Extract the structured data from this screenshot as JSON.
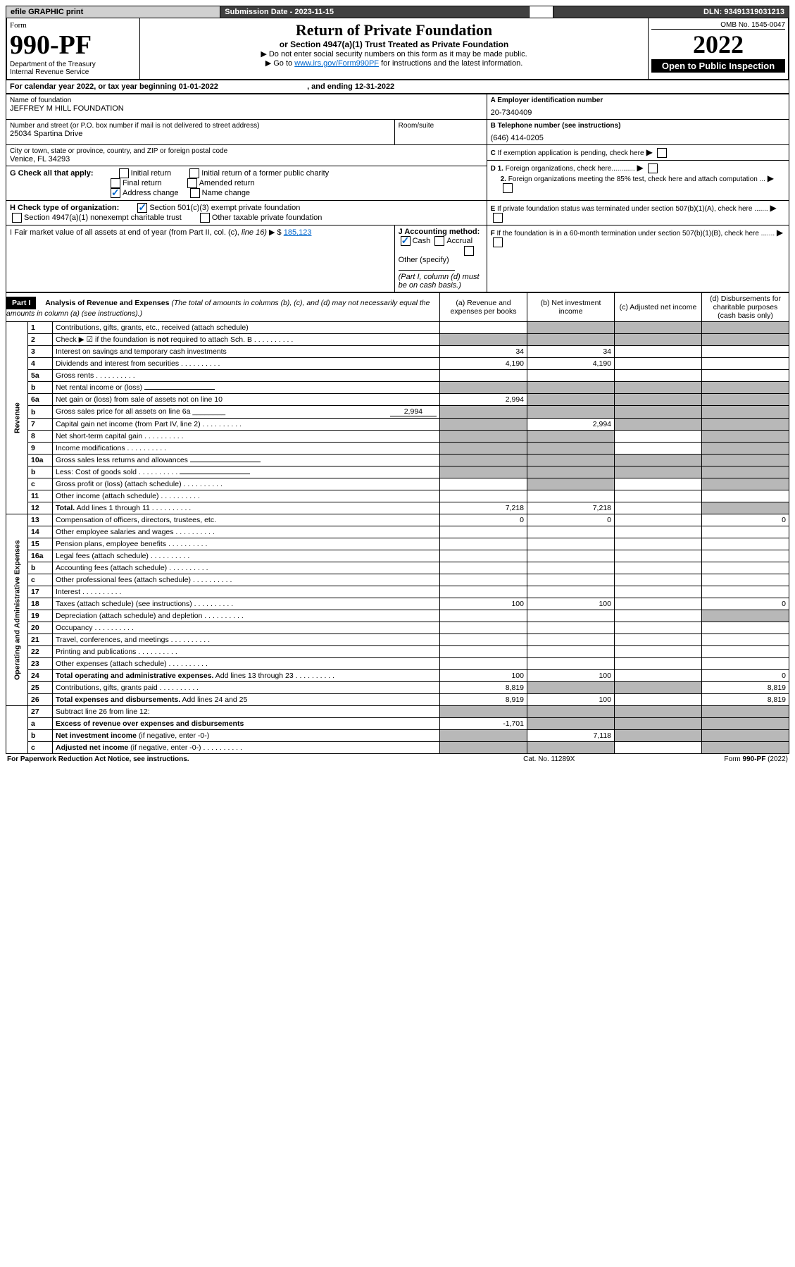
{
  "topbar": {
    "efile": "efile GRAPHIC print",
    "subdate_lbl": "Submission Date - ",
    "subdate": "2023-11-15",
    "dln_lbl": "DLN: ",
    "dln": "93491319031213"
  },
  "omb": "OMB No. 1545-0047",
  "form": {
    "word": "Form",
    "num": "990-PF",
    "dept": "Department of the Treasury",
    "irs": "Internal Revenue Service"
  },
  "title": "Return of Private Foundation",
  "subtitle": "or Section 4947(a)(1) Trust Treated as Private Foundation",
  "instr1": "▶ Do not enter social security numbers on this form as it may be made public.",
  "instr2a": "▶ Go to ",
  "instr2b": "www.irs.gov/Form990PF",
  "instr2c": " for instructions and the latest information.",
  "year": "2022",
  "open": "Open to Public Inspection",
  "calyr": {
    "a": "For calendar year 2022, or tax year beginning ",
    "b": "01-01-2022",
    "c": ", and ending ",
    "d": "12-31-2022"
  },
  "name_lbl": "Name of foundation",
  "name": "JEFFREY M HILL FOUNDATION",
  "ein_lbl": "A Employer identification number",
  "ein": "20-7340409",
  "addr_lbl": "Number and street (or P.O. box number if mail is not delivered to street address)",
  "addr": "25034 Spartina Drive",
  "room_lbl": "Room/suite",
  "tel_lbl": "B Telephone number (see instructions)",
  "tel": "(646) 414-0205",
  "city_lbl": "City or town, state or province, country, and ZIP or foreign postal code",
  "city": "Venice, FL  34293",
  "C": "C If exemption application is pending, check here",
  "G_lbl": "G Check all that apply:",
  "G": [
    "Initial return",
    "Initial return of a former public charity",
    "Final return",
    "Amended return",
    "Address change",
    "Name change"
  ],
  "D1": "D 1. Foreign organizations, check here............",
  "D2": "2. Foreign organizations meeting the 85% test, check here and attach computation ...",
  "H_lbl": "H Check type of organization:",
  "H": [
    "Section 501(c)(3) exempt private foundation",
    "Section 4947(a)(1) nonexempt charitable trust",
    "Other taxable private foundation"
  ],
  "E": "E If private foundation status was terminated under section 507(b)(1)(A), check here .......",
  "I": {
    "a": "I Fair market value of all assets at end of year (from Part II, col. (c), ",
    "b": "line 16)",
    "c": "▶ $",
    "val": "185,123"
  },
  "J": {
    "lbl": "J Accounting method:",
    "a": "Cash",
    "b": "Accrual",
    "c": "Other (specify)",
    "d": "(Part I, column (d) must be on cash basis.)"
  },
  "F": "F  If the foundation is in a 60-month termination under section 507(b)(1)(B), check here .......",
  "part1": {
    "lbl": "Part I",
    "title": "Analysis of Revenue and Expenses ",
    "note": "(The total of amounts in columns (b), (c), and (d) may not necessarily equal the amounts in column (a) (see instructions).)",
    "cols": [
      "(a)  Revenue and expenses per books",
      "(b)  Net investment income",
      "(c)  Adjusted net income",
      "(d)  Disbursements for charitable purposes (cash basis only)"
    ]
  },
  "rev_lbl": "Revenue",
  "exp_lbl": "Operating and Administrative Expenses",
  "rows": [
    {
      "n": "1",
      "t": "Contributions, gifts, grants, etc., received (attach schedule)",
      "g": [
        0,
        1,
        1,
        1
      ]
    },
    {
      "n": "2",
      "t": "Check ▶ ☑ if the foundation is <b>not</b> required to attach Sch. B",
      "dots": 1,
      "g": [
        1,
        1,
        1,
        1
      ]
    },
    {
      "n": "3",
      "t": "Interest on savings and temporary cash investments",
      "a": "34",
      "b": "34"
    },
    {
      "n": "4",
      "t": "Dividends and interest from securities",
      "dots": 1,
      "a": "4,190",
      "b": "4,190"
    },
    {
      "n": "5a",
      "t": "Gross rents",
      "dots": 1
    },
    {
      "n": "b",
      "t": "Net rental income or (loss)",
      "ul": 1,
      "g": [
        1,
        1,
        1,
        1
      ]
    },
    {
      "n": "6a",
      "t": "Net gain or (loss) from sale of assets not on line 10",
      "a": "2,994",
      "g": [
        0,
        1,
        1,
        1
      ]
    },
    {
      "n": "b",
      "t": "Gross sales price for all assets on line 6a ________",
      "v": "2,994",
      "g": [
        1,
        1,
        1,
        1
      ]
    },
    {
      "n": "7",
      "t": "Capital gain net income (from Part IV, line 2)",
      "dots": 1,
      "b": "2,994",
      "g": [
        1,
        0,
        1,
        1
      ]
    },
    {
      "n": "8",
      "t": "Net short-term capital gain",
      "dots": 1,
      "g": [
        1,
        1,
        0,
        1
      ]
    },
    {
      "n": "9",
      "t": "Income modifications",
      "dots": 1,
      "g": [
        1,
        1,
        0,
        1
      ]
    },
    {
      "n": "10a",
      "t": "Gross sales less returns and allowances",
      "ul": 1,
      "g": [
        1,
        1,
        1,
        1
      ]
    },
    {
      "n": "b",
      "t": "Less: Cost of goods sold",
      "dots": 1,
      "ul": 1,
      "g": [
        1,
        1,
        1,
        1
      ]
    },
    {
      "n": "c",
      "t": "Gross profit or (loss) (attach schedule)",
      "dots": 1,
      "g": [
        0,
        1,
        0,
        1
      ]
    },
    {
      "n": "11",
      "t": "Other income (attach schedule)",
      "dots": 1
    },
    {
      "n": "12",
      "t": "<b>Total.</b> Add lines 1 through 11",
      "dots": 1,
      "a": "7,218",
      "b": "7,218",
      "g": [
        0,
        0,
        0,
        1
      ]
    }
  ],
  "erows": [
    {
      "n": "13",
      "t": "Compensation of officers, directors, trustees, etc.",
      "a": "0",
      "b": "0",
      "d": "0"
    },
    {
      "n": "14",
      "t": "Other employee salaries and wages",
      "dots": 1
    },
    {
      "n": "15",
      "t": "Pension plans, employee benefits",
      "dots": 1
    },
    {
      "n": "16a",
      "t": "Legal fees (attach schedule)",
      "dots": 1
    },
    {
      "n": "b",
      "t": "Accounting fees (attach schedule)",
      "dots": 1
    },
    {
      "n": "c",
      "t": "Other professional fees (attach schedule)",
      "dots": 1
    },
    {
      "n": "17",
      "t": "Interest",
      "dots": 1
    },
    {
      "n": "18",
      "t": "Taxes (attach schedule) (see instructions)",
      "dots": 1,
      "a": "100",
      "b": "100",
      "d": "0"
    },
    {
      "n": "19",
      "t": "Depreciation (attach schedule) and depletion",
      "dots": 1,
      "g": [
        0,
        0,
        0,
        1
      ]
    },
    {
      "n": "20",
      "t": "Occupancy",
      "dots": 1
    },
    {
      "n": "21",
      "t": "Travel, conferences, and meetings",
      "dots": 1
    },
    {
      "n": "22",
      "t": "Printing and publications",
      "dots": 1
    },
    {
      "n": "23",
      "t": "Other expenses (attach schedule)",
      "dots": 1
    },
    {
      "n": "24",
      "t": "<b>Total operating and administrative expenses.</b> Add lines 13 through 23",
      "dots": 1,
      "a": "100",
      "b": "100",
      "d": "0"
    },
    {
      "n": "25",
      "t": "Contributions, gifts, grants paid",
      "dots": 1,
      "a": "8,819",
      "d": "8,819",
      "g": [
        0,
        1,
        1,
        0
      ]
    },
    {
      "n": "26",
      "t": "<b>Total expenses and disbursements.</b> Add lines 24 and 25",
      "a": "8,919",
      "b": "100",
      "d": "8,819"
    }
  ],
  "srows": [
    {
      "n": "27",
      "t": "Subtract line 26 from line 12:",
      "g": [
        1,
        1,
        1,
        1
      ]
    },
    {
      "n": "a",
      "t": "<b>Excess of revenue over expenses and disbursements</b>",
      "a": "-1,701",
      "g": [
        0,
        1,
        1,
        1
      ]
    },
    {
      "n": "b",
      "t": "<b>Net investment income</b> (if negative, enter -0-)",
      "b": "7,118",
      "g": [
        1,
        0,
        1,
        1
      ]
    },
    {
      "n": "c",
      "t": "<b>Adjusted net income</b> (if negative, enter -0-)",
      "dots": 1,
      "g": [
        1,
        1,
        0,
        1
      ]
    }
  ],
  "ftr": {
    "a": "For Paperwork Reduction Act Notice, see instructions.",
    "b": "Cat. No. 11289X",
    "c": "Form ",
    "d": "990-PF",
    "e": " (2022)"
  }
}
